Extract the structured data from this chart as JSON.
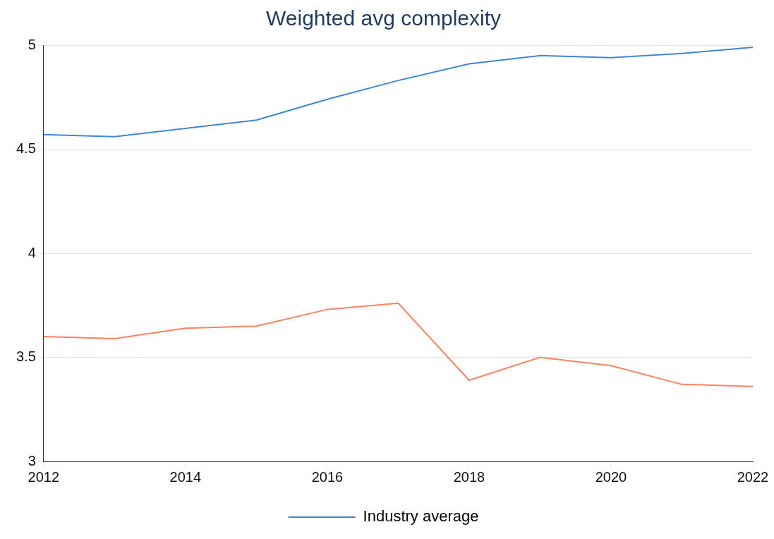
{
  "chart_data": {
    "type": "line",
    "title": "Weighted avg complexity",
    "x": [
      2012,
      2013,
      2014,
      2015,
      2016,
      2017,
      2018,
      2019,
      2020,
      2021,
      2022
    ],
    "series": [
      {
        "name": "Industry average",
        "color": "#3f86d9",
        "values": [
          4.57,
          4.56,
          4.6,
          4.64,
          4.74,
          4.83,
          4.91,
          4.95,
          4.94,
          4.96,
          4.99
        ]
      },
      {
        "color": "#ff8262",
        "values": [
          3.6,
          3.59,
          3.64,
          3.65,
          3.73,
          3.76,
          3.39,
          3.5,
          3.46,
          3.37,
          3.36
        ]
      }
    ],
    "xlim": [
      2012,
      2022
    ],
    "xticks": [
      2012,
      2014,
      2016,
      2018,
      2020,
      2022
    ],
    "ylim": [
      3,
      5
    ],
    "yticks": [
      3,
      3.5,
      4,
      4.5,
      5
    ],
    "grid": "y",
    "legend": "bottom",
    "marker": "none",
    "line_style": "solid"
  }
}
